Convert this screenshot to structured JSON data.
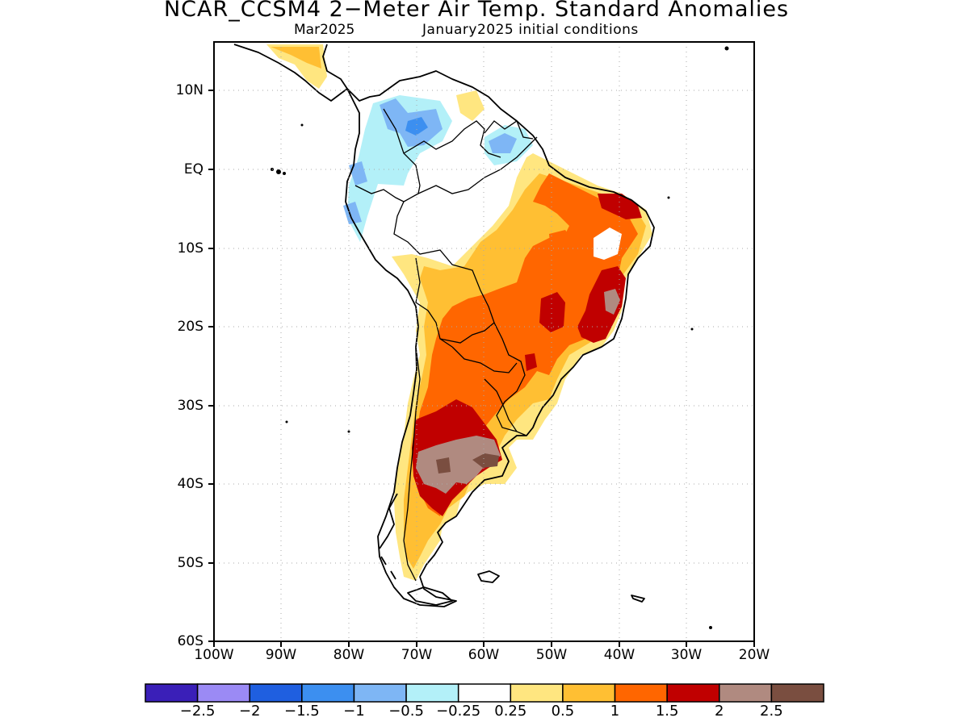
{
  "title": "NCAR_CCSM4 2−Meter Air Temp. Standard Anomalies",
  "subtitle_month": "Mar2025",
  "subtitle_init": "January2025 initial conditions",
  "lat_labels": [
    "10N",
    "EQ",
    "10S",
    "20S",
    "30S",
    "40S",
    "50S",
    "60S"
  ],
  "lon_labels": [
    "100W",
    "90W",
    "80W",
    "70W",
    "60W",
    "50W",
    "40W",
    "30W",
    "20W"
  ],
  "legend": {
    "labels": [
      "−2.5",
      "−2",
      "−1.5",
      "−1",
      "−0.5",
      "−0.25",
      "0.25",
      "0.5",
      "1",
      "1.5",
      "2",
      "2.5"
    ],
    "colors": [
      "#3a1fb8",
      "#9b8af5",
      "#1f5fe0",
      "#3c8ff0",
      "#7eb6f5",
      "#b3f0f8",
      "#ffffff",
      "#ffe680",
      "#ffbf33",
      "#ff6600",
      "#c00000",
      "#b08a80",
      "#7a4e40"
    ]
  },
  "colors": {
    "anom_0_5": "#ffe680",
    "anom_1": "#ffbf33",
    "anom_1_5": "#ff6600",
    "anom_2": "#c00000",
    "anom_2_5": "#b08a80",
    "anom_gt_2_5": "#7a4e40",
    "anom_neg_0_5": "#b3f0f8",
    "anom_neg_1": "#7eb6f5",
    "anom_neg_1_5": "#3c8ff0"
  }
}
